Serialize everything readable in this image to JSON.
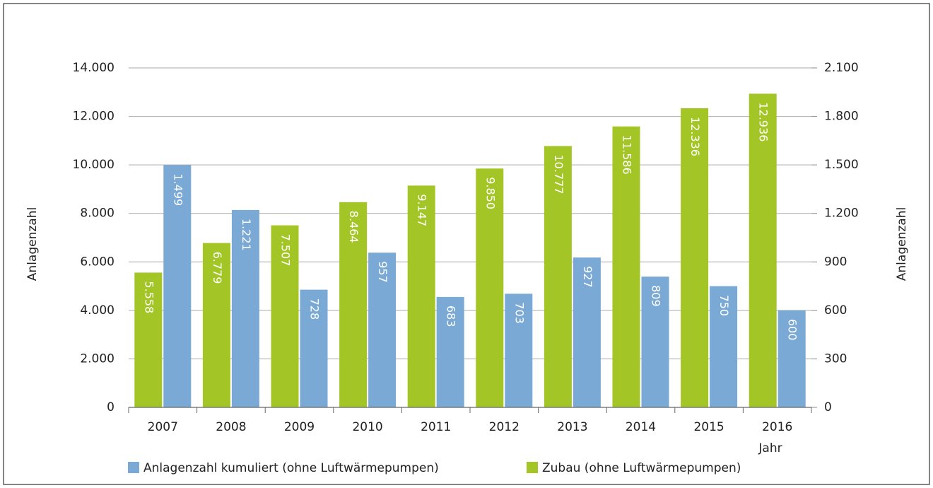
{
  "chart_data": {
    "type": "bar",
    "categories": [
      "2007",
      "2008",
      "2009",
      "2010",
      "2011",
      "2012",
      "2013",
      "2014",
      "2015",
      "2016"
    ],
    "series": [
      {
        "name": "Anlagenzahl kumuliert (ohne Luftwärmepumpen)",
        "color": "#7aa9d5",
        "axis": "y2",
        "values": [
          1499,
          1221,
          728,
          957,
          683,
          703,
          927,
          809,
          750,
          600
        ],
        "value_labels": [
          "1.499",
          "1.221",
          "728",
          "957",
          "683",
          "703",
          "927",
          "809",
          "750",
          "600"
        ]
      },
      {
        "name": "Zubau (ohne Luftwärmepumpen)",
        "color": "#a3c526",
        "values": [
          5558,
          6779,
          7507,
          8464,
          9147,
          9850,
          10777,
          11586,
          12336,
          12936
        ],
        "value_labels": [
          "5.558",
          "6.779",
          "7.507",
          "8.464",
          "9.147",
          "9.850",
          "10.777",
          "11.586",
          "12.336",
          "12.936"
        ]
      }
    ],
    "x_label": "Jahr",
    "y_label": "Anlagenzahl",
    "y2_label": "Anlagenzahl",
    "ylim": [
      0,
      14000
    ],
    "yticks": [
      0,
      {
        "value": 2000,
        "label": "2.000"
      },
      {
        "value": 4000,
        "label": "4.000"
      },
      {
        "value": 6000,
        "label": "6.000"
      },
      {
        "value": 8000,
        "label": "8.000"
      },
      {
        "value": 10000,
        "label": "10.000"
      },
      {
        "value": 12000,
        "label": "12.000"
      },
      {
        "value": 14000,
        "label": "14.000"
      }
    ],
    "y2lim": [
      0,
      2100
    ],
    "y2ticks": [
      0,
      300,
      600,
      900,
      {
        "value": 1200,
        "label": "1.200"
      },
      {
        "value": 1500,
        "label": "1.500"
      },
      {
        "value": 1800,
        "label": "1.800"
      },
      {
        "value": 2100,
        "label": "2.100"
      }
    ],
    "grid": true
  }
}
